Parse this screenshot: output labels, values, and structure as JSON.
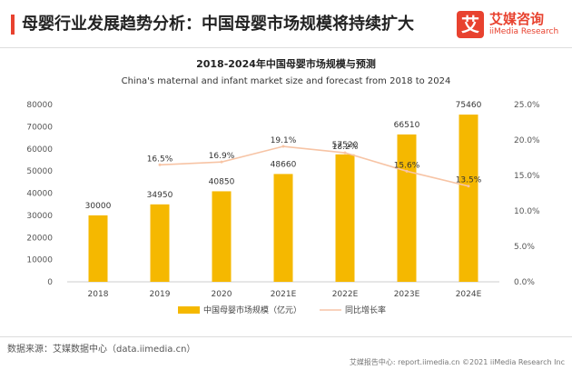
{
  "header": {
    "title": "母婴行业发展趋势分析：中国母婴市场规模将持续扩大",
    "logo_mark": "艾",
    "logo_cn": "艾媒咨询",
    "logo_en": "iiMedia Research"
  },
  "footer": {
    "source": "数据来源：艾媒数据中心（data.iimedia.cn）",
    "bottom": "艾媒报告中心: report.iimedia.cn  ©2021  iiMedia Research  Inc"
  },
  "colors": {
    "bar": "#f5b800",
    "line": "#f7c4a5",
    "accent": "#e8422f"
  },
  "chart_data": {
    "type": "bar",
    "title": "2018-2024年中国母婴市场规模与预测",
    "subtitle": "China's maternal and infant market size and forecast from 2018 to 2024",
    "categories": [
      "2018",
      "2019",
      "2020",
      "2021E",
      "2022E",
      "2023E",
      "2024E"
    ],
    "y_ticks": [
      "0",
      "10000",
      "20000",
      "30000",
      "40000",
      "50000",
      "60000",
      "70000",
      "80000"
    ],
    "y2_ticks": [
      "0.0%",
      "5.0%",
      "10.0%",
      "15.0%",
      "20.0%",
      "25.0%"
    ],
    "ylim": [
      0,
      80000
    ],
    "y2lim": [
      0,
      25
    ],
    "grid": false,
    "legend_position": "bottom",
    "series": [
      {
        "name": "中国母婴市场规模（亿元）",
        "type": "bar",
        "values": [
          30000,
          34950,
          40850,
          48660,
          57520,
          66510,
          75460
        ],
        "labels": [
          "30000",
          "34950",
          "40850",
          "48660",
          "57520",
          "66510",
          "75460"
        ]
      },
      {
        "name": "同比增长率",
        "type": "line",
        "axis": "right",
        "values": [
          null,
          16.5,
          16.9,
          19.1,
          18.2,
          15.6,
          13.5
        ],
        "labels": [
          "",
          "16.5%",
          "16.9%",
          "19.1%",
          "18.2%",
          "15.6%",
          "13.5%"
        ]
      }
    ]
  }
}
